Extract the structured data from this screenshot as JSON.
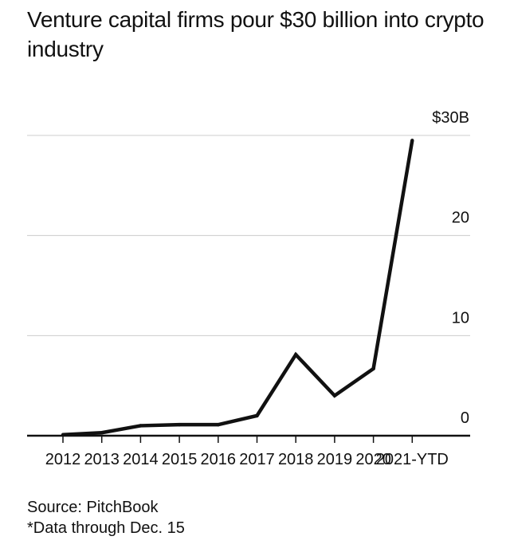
{
  "chart_data": {
    "type": "line",
    "title": "Venture capital firms pour $30 billion into crypto industry",
    "categories": [
      "2012",
      "2013",
      "2014",
      "2015",
      "2016",
      "2017",
      "2018",
      "2019",
      "2020",
      "2021-YTD"
    ],
    "series": [
      {
        "values": [
          0.1,
          0.3,
          1.0,
          1.1,
          1.1,
          2.0,
          8.1,
          4.0,
          6.7,
          29.5
        ]
      }
    ],
    "y_ticks": [
      {
        "value": 0,
        "label": "0"
      },
      {
        "value": 10,
        "label": "10"
      },
      {
        "value": 20,
        "label": "20"
      },
      {
        "value": 30,
        "label": "$30B"
      }
    ],
    "ylim": [
      0,
      30
    ],
    "grid": true,
    "line_color": "#111111",
    "grid_color": "#cccccc"
  },
  "footer": {
    "source": "Source: PitchBook",
    "note": "*Data through Dec. 15"
  }
}
